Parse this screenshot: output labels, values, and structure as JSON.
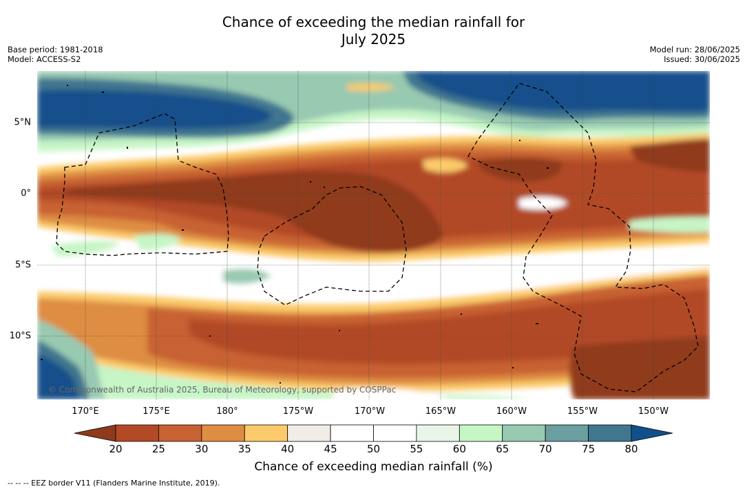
{
  "header": {
    "title_line1": "Chance of exceeding the median rainfall for",
    "title_line2": "July 2025"
  },
  "meta": {
    "base_period": "Base period: 1981-2018",
    "model": "Model: ACCESS-S2",
    "model_run": "Model run: 28/06/2025",
    "issued": "Issued: 30/06/2025"
  },
  "map": {
    "lat_labels": [
      "5°N",
      "0°",
      "5°S",
      "10°S"
    ],
    "lon_labels": [
      "170°E",
      "175°E",
      "180°",
      "175°W",
      "170°W",
      "165°W",
      "160°W",
      "155°W",
      "150°W"
    ],
    "credit": "© Commonwealth of Australia 2025, Bureau of Meteorology, supported by COSPPac"
  },
  "legend": {
    "title": "Chance of exceeding median rainfall (%)",
    "ticks": [
      "20",
      "25",
      "30",
      "35",
      "40",
      "45",
      "50",
      "55",
      "60",
      "65",
      "70",
      "75",
      "80"
    ],
    "colors": [
      "#8f3a1c",
      "#b24a26",
      "#c86232",
      "#de8d42",
      "#fbca6a",
      "#f0ece8",
      "#ffffff",
      "#ffffff",
      "#e8f5e8",
      "#c6f5c6",
      "#98c9b1",
      "#6a9ea0",
      "#41768f",
      "#12508b"
    ]
  },
  "footnote": "-- -- -- EEZ border V11 (Flanders Marine Institute, 2019)."
}
